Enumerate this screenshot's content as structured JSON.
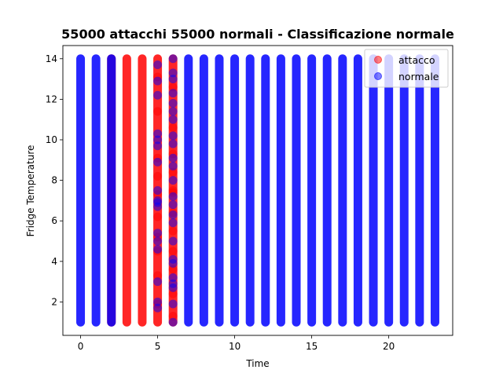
{
  "chart_data": {
    "type": "scatter",
    "title": "55000 attacchi 55000 normali - Classificazione normale",
    "xlabel": "Time",
    "ylabel": "Fridge Temperature",
    "xlim": [
      -1.15,
      24.15
    ],
    "ylim": [
      0.35,
      14.65
    ],
    "xticks": [
      0,
      5,
      10,
      15,
      20
    ],
    "yticks": [
      2,
      4,
      6,
      8,
      10,
      12,
      14
    ],
    "grid": false,
    "legend": "top-right",
    "colors": {
      "attacco": "#ff0000",
      "normale": "#0000ff"
    },
    "series": [
      {
        "name": "attacco",
        "color": "#ff0000",
        "alpha": 0.5,
        "columns": [
          {
            "x": 2,
            "y_min": 1.0,
            "y_max": 14.0
          },
          {
            "x": 3,
            "y_min": 1.0,
            "y_max": 14.0
          },
          {
            "x": 4,
            "y_min": 1.0,
            "y_max": 14.0
          },
          {
            "x": 5,
            "y_min": 1.0,
            "y_max": 14.0
          },
          {
            "x": 6,
            "y_min": 1.0,
            "y_max": 14.0
          }
        ],
        "points": [
          {
            "x": 5,
            "y": 13.1
          },
          {
            "x": 5,
            "y": 11.4
          },
          {
            "x": 5,
            "y": 9.1
          },
          {
            "x": 5,
            "y": 8.2
          },
          {
            "x": 5,
            "y": 7.3
          },
          {
            "x": 5,
            "y": 6.2
          },
          {
            "x": 5,
            "y": 5.2
          },
          {
            "x": 5,
            "y": 4.5
          },
          {
            "x": 5,
            "y": 3.3
          },
          {
            "x": 5,
            "y": 1.9
          },
          {
            "x": 6,
            "y": 12.6
          },
          {
            "x": 6,
            "y": 10.6
          },
          {
            "x": 6,
            "y": 9.3
          },
          {
            "x": 6,
            "y": 8.4
          },
          {
            "x": 6,
            "y": 7.5
          },
          {
            "x": 6,
            "y": 7.4
          },
          {
            "x": 6,
            "y": 6.4
          },
          {
            "x": 6,
            "y": 5.5
          },
          {
            "x": 6,
            "y": 4.5
          },
          {
            "x": 6,
            "y": 3.6
          },
          {
            "x": 6,
            "y": 2.4
          },
          {
            "x": 6,
            "y": 1.3
          }
        ]
      },
      {
        "name": "normale",
        "color": "#0000ff",
        "alpha": 0.5,
        "columns": [
          {
            "x": 0,
            "y_min": 1.0,
            "y_max": 14.0
          },
          {
            "x": 1,
            "y_min": 1.0,
            "y_max": 14.0
          },
          {
            "x": 2,
            "y_min": 1.0,
            "y_max": 14.0
          },
          {
            "x": 7,
            "y_min": 1.0,
            "y_max": 14.0
          },
          {
            "x": 8,
            "y_min": 1.0,
            "y_max": 14.0
          },
          {
            "x": 9,
            "y_min": 1.0,
            "y_max": 14.0
          },
          {
            "x": 10,
            "y_min": 1.0,
            "y_max": 14.0
          },
          {
            "x": 11,
            "y_min": 1.0,
            "y_max": 14.0
          },
          {
            "x": 12,
            "y_min": 1.0,
            "y_max": 14.0
          },
          {
            "x": 13,
            "y_min": 1.0,
            "y_max": 14.0
          },
          {
            "x": 14,
            "y_min": 1.0,
            "y_max": 14.0
          },
          {
            "x": 15,
            "y_min": 1.0,
            "y_max": 14.0
          },
          {
            "x": 16,
            "y_min": 1.0,
            "y_max": 14.0
          },
          {
            "x": 17,
            "y_min": 1.0,
            "y_max": 14.0
          },
          {
            "x": 18,
            "y_min": 1.0,
            "y_max": 14.0
          },
          {
            "x": 19,
            "y_min": 1.0,
            "y_max": 14.0
          },
          {
            "x": 20,
            "y_min": 1.0,
            "y_max": 14.0
          },
          {
            "x": 21,
            "y_min": 1.0,
            "y_max": 14.0
          },
          {
            "x": 22,
            "y_min": 1.0,
            "y_max": 14.0
          },
          {
            "x": 23,
            "y_min": 1.0,
            "y_max": 14.0
          }
        ],
        "points": [
          {
            "x": 5,
            "y": 13.7
          },
          {
            "x": 5,
            "y": 12.9
          },
          {
            "x": 5,
            "y": 12.2
          },
          {
            "x": 5,
            "y": 10.3
          },
          {
            "x": 5,
            "y": 10.0
          },
          {
            "x": 5,
            "y": 9.7
          },
          {
            "x": 5,
            "y": 8.9
          },
          {
            "x": 5,
            "y": 7.5
          },
          {
            "x": 5,
            "y": 7.0
          },
          {
            "x": 5,
            "y": 6.9
          },
          {
            "x": 5,
            "y": 6.7
          },
          {
            "x": 5,
            "y": 5.4
          },
          {
            "x": 5,
            "y": 5.0
          },
          {
            "x": 5,
            "y": 4.6
          },
          {
            "x": 5,
            "y": 3.0
          },
          {
            "x": 5,
            "y": 2.0
          },
          {
            "x": 5,
            "y": 1.7
          },
          {
            "x": 6,
            "y": 14.0
          },
          {
            "x": 6,
            "y": 13.3
          },
          {
            "x": 6,
            "y": 13.0
          },
          {
            "x": 6,
            "y": 12.3
          },
          {
            "x": 6,
            "y": 11.8
          },
          {
            "x": 6,
            "y": 11.4
          },
          {
            "x": 6,
            "y": 11.0
          },
          {
            "x": 6,
            "y": 10.2
          },
          {
            "x": 6,
            "y": 9.8
          },
          {
            "x": 6,
            "y": 9.1
          },
          {
            "x": 6,
            "y": 8.7
          },
          {
            "x": 6,
            "y": 8.0
          },
          {
            "x": 6,
            "y": 7.2
          },
          {
            "x": 6,
            "y": 6.8
          },
          {
            "x": 6,
            "y": 6.3
          },
          {
            "x": 6,
            "y": 5.9
          },
          {
            "x": 6,
            "y": 5.0
          },
          {
            "x": 6,
            "y": 4.1
          },
          {
            "x": 6,
            "y": 3.9
          },
          {
            "x": 6,
            "y": 3.2
          },
          {
            "x": 6,
            "y": 2.9
          },
          {
            "x": 6,
            "y": 2.7
          },
          {
            "x": 6,
            "y": 1.9
          },
          {
            "x": 6,
            "y": 1.0
          }
        ]
      }
    ]
  }
}
